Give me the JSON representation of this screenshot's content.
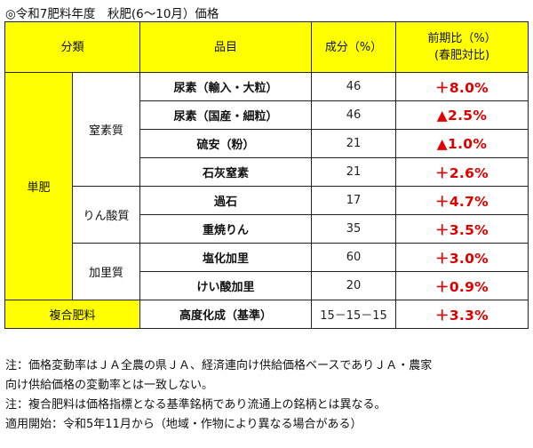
{
  "title": "◎令和7肥料年度　秋肥(6～10月）価格",
  "headers": {
    "category": "分類",
    "item": "品目",
    "component": "成分（%）",
    "change_line1": "前期比（%）",
    "change_line2": "(春肥対比)"
  },
  "groups": {
    "single": "単肥",
    "nitrogen": "窒素質",
    "phosphate": "りん酸質",
    "potassium": "加里質",
    "compound": "複合肥料"
  },
  "rows": [
    {
      "item": "尿素（輸入・大粒）",
      "component": "46",
      "change": "＋8.0%"
    },
    {
      "item": "尿素（国産・細粒）",
      "component": "46",
      "change": "▲2.5%"
    },
    {
      "item": "硫安（粉）",
      "component": "21",
      "change": "▲1.0%"
    },
    {
      "item": "石灰窒素",
      "component": "21",
      "change": "＋2.6%"
    },
    {
      "item": "過石",
      "component": "17",
      "change": "＋4.7%"
    },
    {
      "item": "重焼りん",
      "component": "35",
      "change": "＋3.5%"
    },
    {
      "item": "塩化加里",
      "component": "60",
      "change": "＋3.0%"
    },
    {
      "item": "けい酸加里",
      "component": "20",
      "change": "＋0.9%"
    },
    {
      "item": "高度化成（基準）",
      "component": "15－15－15",
      "change": "＋3.3%"
    }
  ],
  "notes": [
    "注：価格変動率はＪＡ全農の県ＪＡ、経済連向け供給価格ベースでありＪＡ・農家",
    "向け供給価格の変動率とは一致しない。",
    "注：複合肥料は価格指標となる基準銘柄であり流通上の銘柄とは異なる。",
    "適用開始：令和5年11月から（地域・作物により異なる場合がある）"
  ],
  "colors": {
    "header_bg": "#ffff00",
    "change_text": "#e00000"
  }
}
